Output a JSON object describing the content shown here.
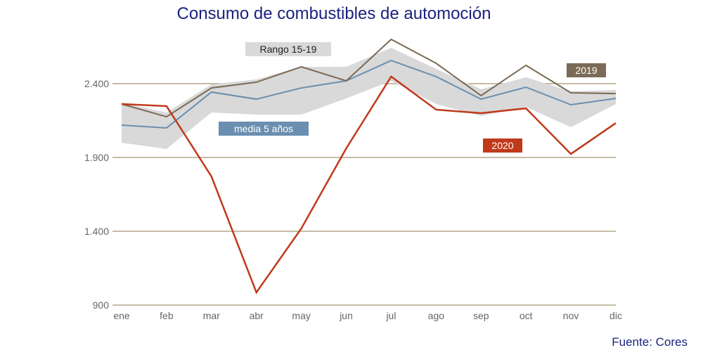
{
  "chart_data": {
    "type": "line",
    "title": "Consumo de combustibles de automoción",
    "source": "Fuente: Cores",
    "categories": [
      "ene",
      "feb",
      "mar",
      "abr",
      "may",
      "jun",
      "jul",
      "ago",
      "sep",
      "oct",
      "nov",
      "dic"
    ],
    "ylim": [
      900,
      2750
    ],
    "yticks": [
      {
        "value": 900,
        "label": "900"
      },
      {
        "value": 1400,
        "label": "1.400"
      },
      {
        "value": 1900,
        "label": "1.900"
      },
      {
        "value": 2400,
        "label": "2.400"
      }
    ],
    "grid": true,
    "range": {
      "name": "Rango 15-19",
      "color": "#d9d9d9",
      "upper": [
        2271,
        2205,
        2395,
        2429,
        2514,
        2514,
        2643,
        2500,
        2362,
        2443,
        2348,
        2357
      ],
      "lower": [
        2000,
        1957,
        2205,
        2190,
        2190,
        2300,
        2419,
        2262,
        2181,
        2243,
        2105,
        2262
      ]
    },
    "series": [
      {
        "name": "media 5 años",
        "color": "#6a8fb0",
        "values": [
          2119,
          2100,
          2343,
          2295,
          2371,
          2419,
          2557,
          2448,
          2295,
          2376,
          2257,
          2300
        ]
      },
      {
        "name": "2019",
        "color": "#7b6a55",
        "values": [
          2262,
          2176,
          2371,
          2410,
          2514,
          2419,
          2700,
          2538,
          2319,
          2524,
          2338,
          2333
        ]
      },
      {
        "name": "2020",
        "color": "#c0391b",
        "values": [
          2262,
          2248,
          1771,
          986,
          1419,
          1962,
          2448,
          2224,
          2200,
          2233,
          1924,
          2133
        ]
      }
    ]
  }
}
